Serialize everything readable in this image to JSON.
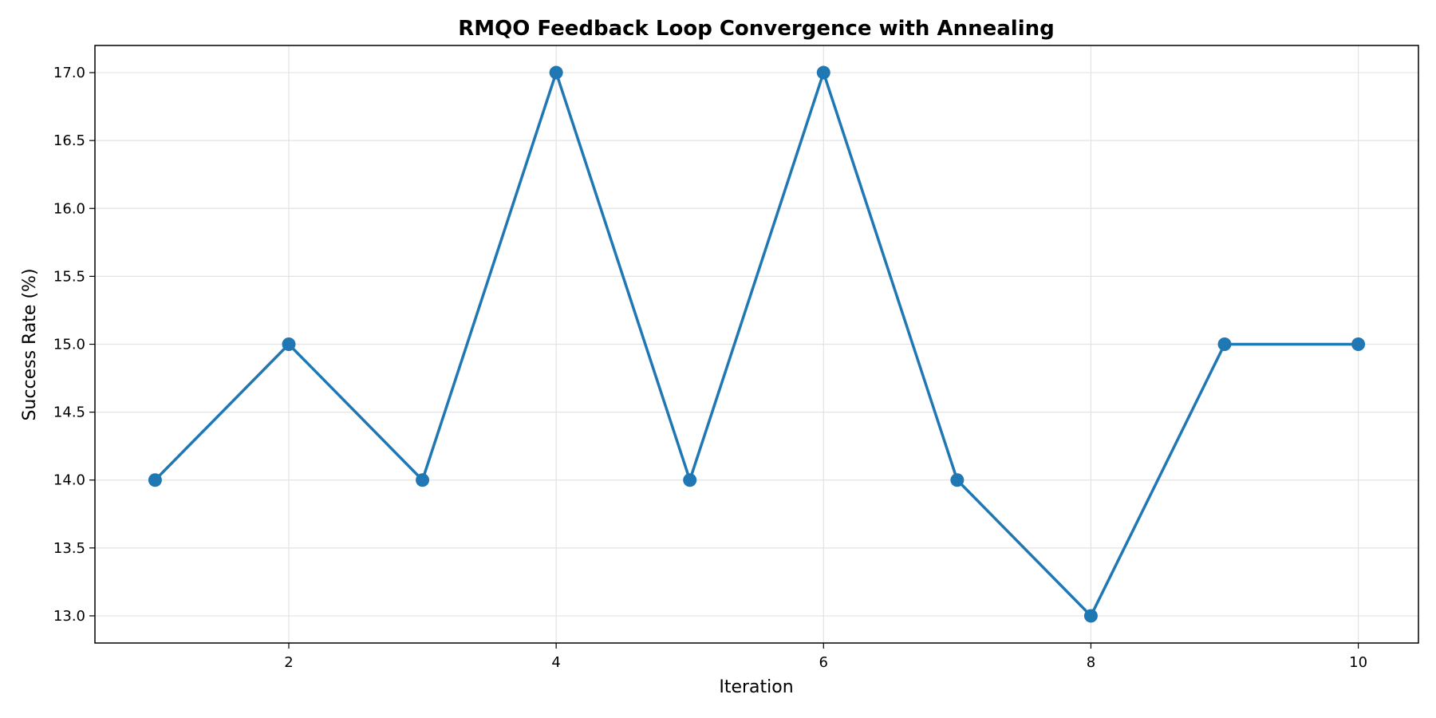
{
  "chart_data": {
    "type": "line",
    "title": "RMQO Feedback Loop Convergence with Annealing",
    "xlabel": "Iteration",
    "ylabel": "Success Rate (%)",
    "x": [
      1,
      2,
      3,
      4,
      5,
      6,
      7,
      8,
      9,
      10
    ],
    "series": [
      {
        "values": [
          14,
          15,
          14,
          17,
          14,
          17,
          14,
          13,
          15,
          15
        ],
        "color": "#1f77b4",
        "marker": "circle"
      }
    ],
    "xlim": [
      0.55,
      10.45
    ],
    "ylim": [
      12.8,
      17.2
    ],
    "xticks": [
      2,
      4,
      6,
      8,
      10
    ],
    "yticks": [
      13.0,
      13.5,
      14.0,
      14.5,
      15.0,
      15.5,
      16.0,
      16.5,
      17.0
    ],
    "xtick_labels": [
      "2",
      "4",
      "6",
      "8",
      "10"
    ],
    "ytick_labels": [
      "13.0",
      "13.5",
      "14.0",
      "14.5",
      "15.0",
      "15.5",
      "16.0",
      "16.5",
      "17.0"
    ],
    "grid": true,
    "legend": "none"
  }
}
